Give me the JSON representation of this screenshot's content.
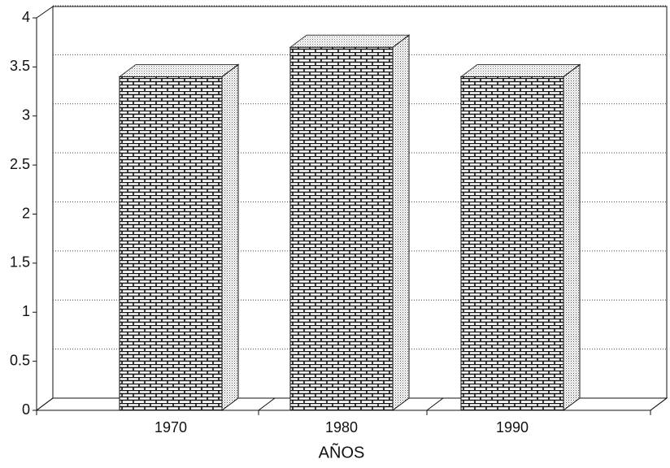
{
  "chart_data": {
    "type": "bar",
    "x_label": "AÑOS",
    "categories": [
      "1970",
      "1980",
      "1990"
    ],
    "values": [
      3.4,
      3.7,
      3.4
    ],
    "ylim": [
      0,
      4
    ],
    "yticks": [
      0,
      0.5,
      1,
      1.5,
      2,
      2.5,
      3,
      3.5,
      4
    ],
    "grid": true
  }
}
